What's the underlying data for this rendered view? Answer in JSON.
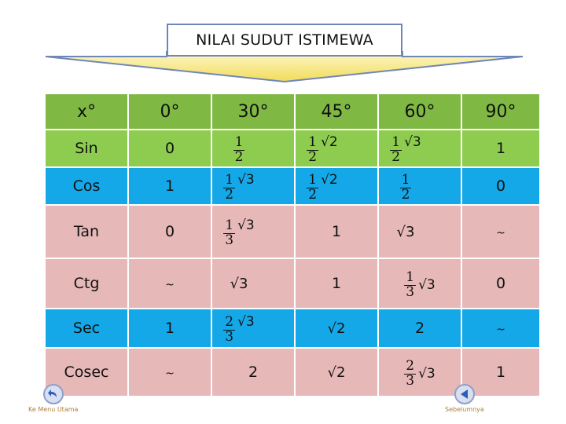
{
  "title": "NILAI SUDUT ISTIMEWA",
  "header": [
    "x°",
    "0°",
    "30°",
    "45°",
    "60°",
    "90°"
  ],
  "rows": {
    "sin": [
      "Sin",
      "0",
      "1",
      "1",
      "√2",
      "1",
      "√3",
      "1"
    ],
    "cos": [
      "Cos",
      "1",
      "1",
      "√3",
      "1",
      "√2",
      "1",
      "0"
    ],
    "tan": [
      "Tan",
      "0",
      "1",
      "√3",
      "1",
      "√3",
      "~"
    ],
    "ctg": [
      "Ctg",
      "~",
      "√3",
      "1",
      "1",
      "√3",
      "0"
    ],
    "sec": [
      "Sec",
      "1",
      "2",
      "√3",
      "√2",
      "2",
      "~"
    ],
    "cosec": [
      "Cosec",
      "~",
      "2",
      "√2",
      "2",
      "√3",
      "1"
    ]
  },
  "denominators": {
    "two": "2",
    "three": "3"
  },
  "nav": {
    "home_label": "Ke Menu Utama",
    "prev_label": "Sebelumnya"
  },
  "colors": {
    "header": "#7fb943",
    "green": "#8dcc4f",
    "blue": "#14a8e8",
    "pink": "#e6b8b8"
  },
  "icons": {
    "home": "back-arrow-icon",
    "prev": "triangle-left-icon"
  }
}
